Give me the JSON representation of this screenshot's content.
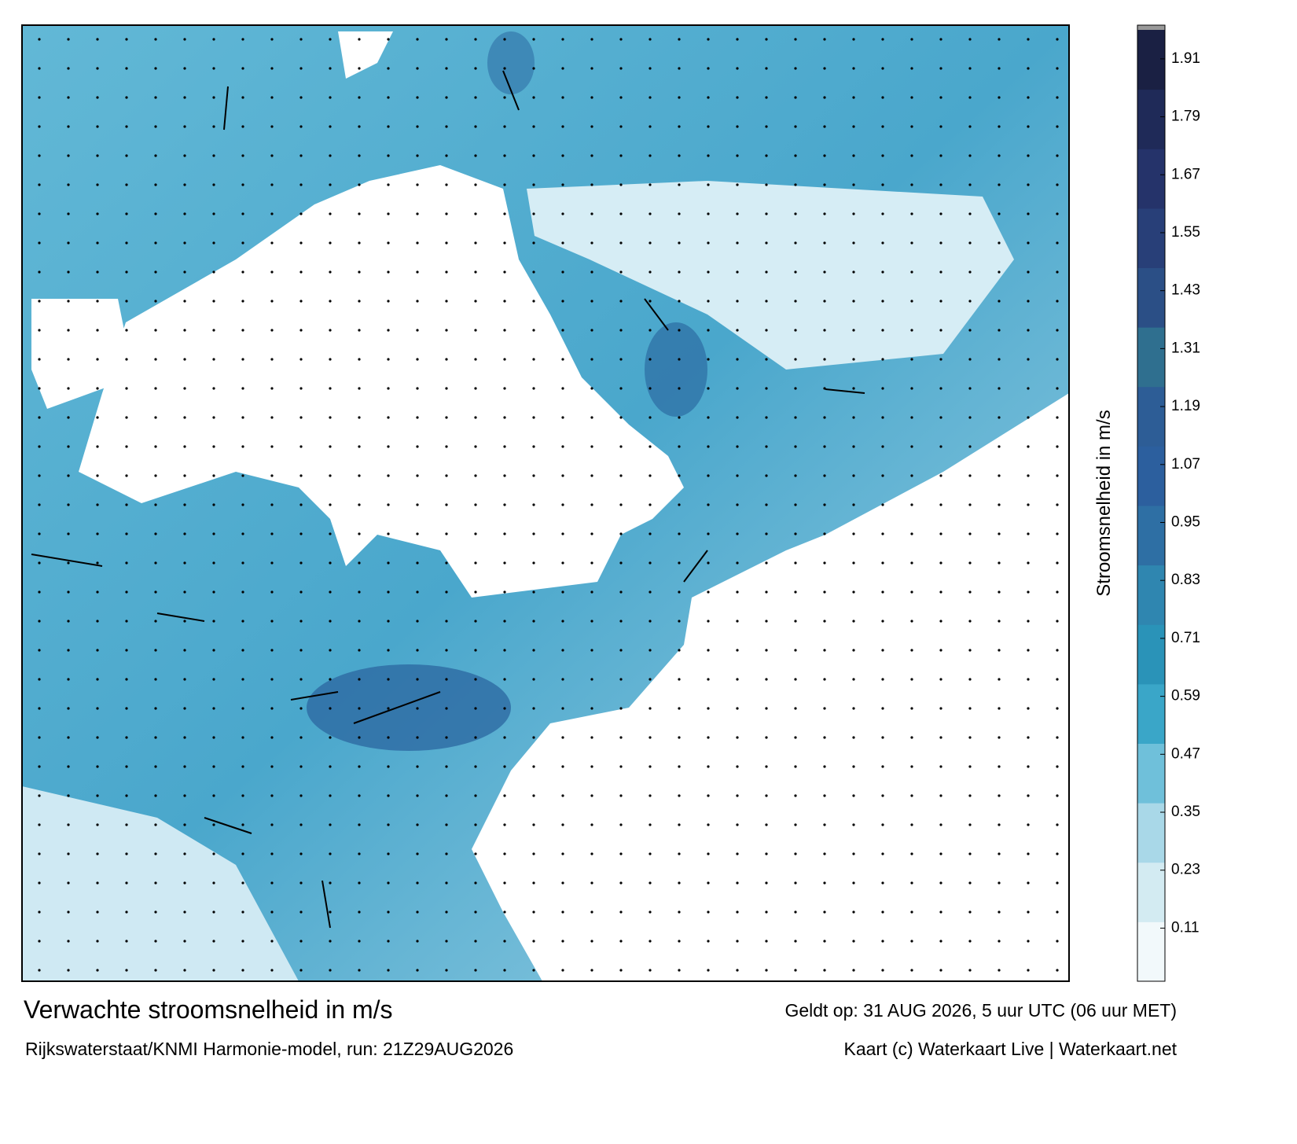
{
  "map": {
    "title": "Verwachte stroomsnelheid in m/s",
    "valid": "Geldt op: 31 AUG 2026, 5 uur UTC (06 uur MET)",
    "source": "Rijkswaterstaat/KNMI Harmonie-model, run: 21Z29AUG2026",
    "credit": "Kaart (c) Waterkaart Live | Waterkaart.net"
  },
  "colorbar": {
    "label": "Stroomsnelheid in m/s",
    "lim": [
      0,
      1.97
    ],
    "ticks": [
      0.11,
      0.23,
      0.35,
      0.47,
      0.59,
      0.71,
      0.83,
      0.95,
      1.07,
      1.19,
      1.31,
      1.43,
      1.55,
      1.67,
      1.79,
      1.91
    ],
    "colors": [
      "#f2f9fb",
      "#d3ebf2",
      "#a9d8e8",
      "#6fc0da",
      "#3aa6c8",
      "#2a93b8",
      "#2f86b0",
      "#2e6fa4",
      "#2c5f9e",
      "#2d5d96",
      "#2f6f8f",
      "#2b4f86",
      "#283f78",
      "#25336a",
      "#1f2a58",
      "#1a2043"
    ]
  }
}
